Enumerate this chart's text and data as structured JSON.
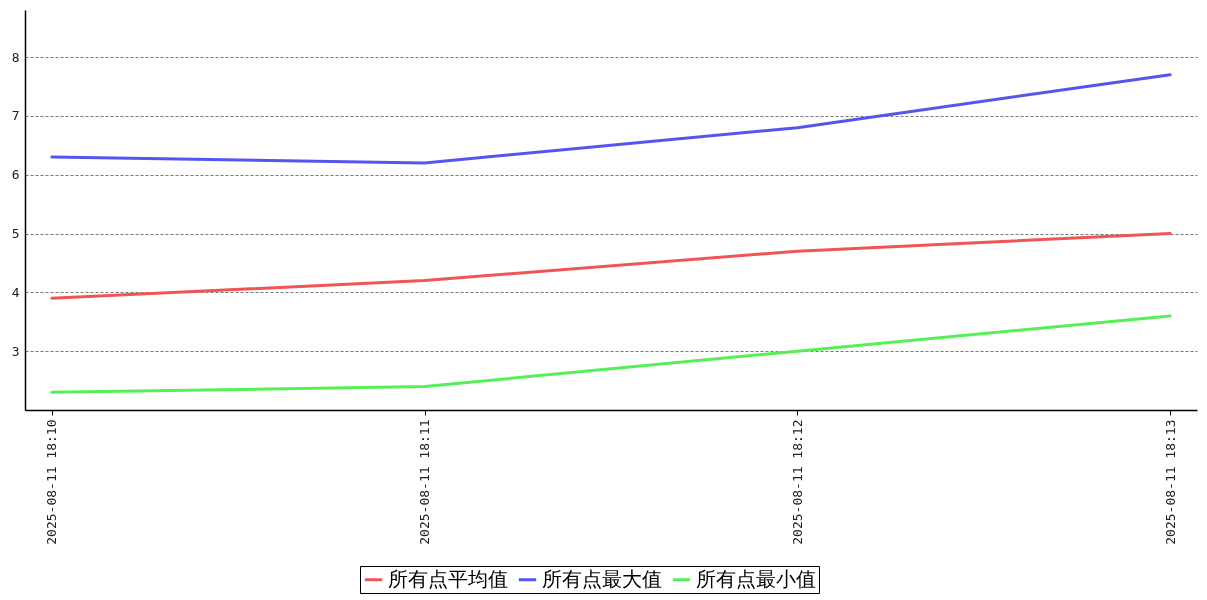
{
  "chart_data": {
    "type": "line",
    "categories": [
      "2025-08-11 18:10",
      "2025-08-11 18:11",
      "2025-08-11 18:12",
      "2025-08-11 18:13"
    ],
    "series": [
      {
        "name": "所有点平均值",
        "color": "#f05555",
        "values": [
          3.9,
          4.2,
          4.7,
          5.0
        ]
      },
      {
        "name": "所有点最大值",
        "color": "#5555ee",
        "values": [
          6.3,
          6.2,
          6.8,
          7.7
        ]
      },
      {
        "name": "所有点最小值",
        "color": "#55f055",
        "values": [
          2.3,
          2.4,
          3.0,
          3.6
        ]
      }
    ],
    "ylim": [
      2,
      8.8
    ],
    "yticks": [
      3,
      4,
      5,
      6,
      7,
      8
    ],
    "grid": "y",
    "legend": "bottom"
  }
}
